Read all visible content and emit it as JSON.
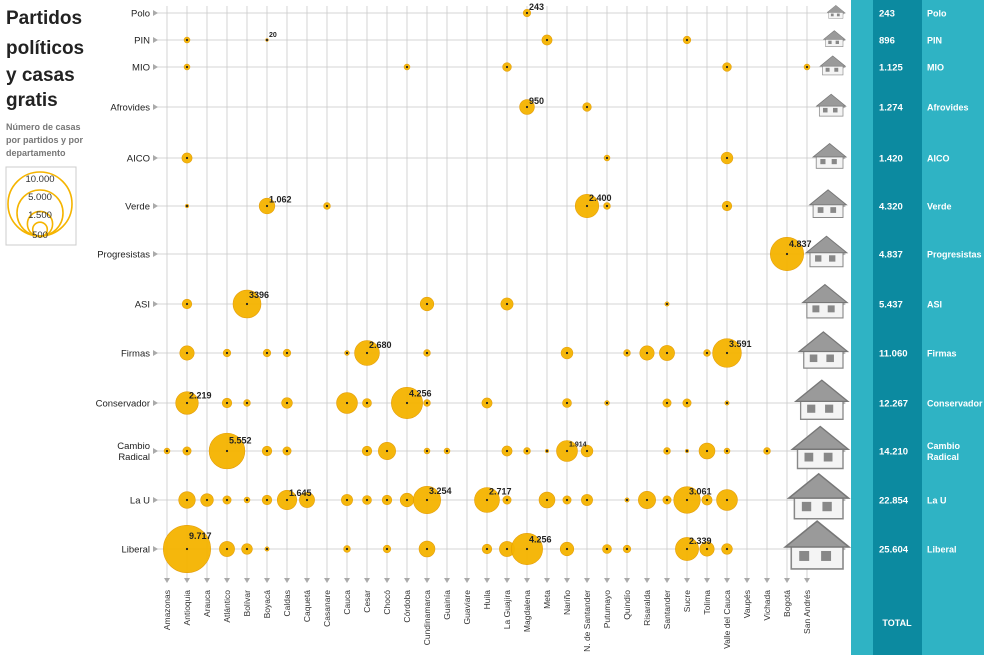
{
  "title_lines": [
    "Partidos",
    "políticos",
    "y casas",
    "gratis"
  ],
  "subtitle_lines": [
    "Número de casas",
    "por partidos y por",
    "departamento"
  ],
  "legend": {
    "values": [
      "10.000",
      "5.000",
      "1.500",
      "500"
    ]
  },
  "total_label": "TOTAL",
  "colors": {
    "bubble": "#f5b400",
    "bubble_stroke": "#e39a00",
    "panel_dark": "#0c8aa0",
    "panel_light": "#2fb3c4",
    "grid": "#c9c9c9",
    "house_wall": "#f4f4f4",
    "house_roof": "#9a9a9a"
  },
  "chart_data": {
    "type": "bubble-matrix",
    "title": "Partidos políticos y casas gratis",
    "subtitle": "Número de casas por partidos y por departamento",
    "departments": [
      "Amazonas",
      "Antioquia",
      "Arauca",
      "Atlántico",
      "Bolívar",
      "Boyacá",
      "Caldas",
      "Caquetá",
      "Casanare",
      "Cauca",
      "Cesar",
      "Chocó",
      "Córdoba",
      "Cundinamarca",
      "Guainía",
      "Guaviare",
      "Huila",
      "La Guajira",
      "Magdalena",
      "Meta",
      "Nariño",
      "N. de Santander",
      "Putumayo",
      "Quindío",
      "Risaralda",
      "Santander",
      "Sucre",
      "Tolima",
      "Valle del Cauca",
      "Vaupés",
      "Vichada",
      "Bogotá",
      "San Andrés"
    ],
    "parties": [
      {
        "name": "Polo",
        "lines": [
          "Polo"
        ],
        "total": "243",
        "total_name_lines": [
          "Polo"
        ],
        "points": [
          {
            "dept": "Magdalena",
            "size": 243,
            "label": "243"
          }
        ]
      },
      {
        "name": "PIN",
        "lines": [
          "PIN"
        ],
        "total": "896",
        "total_name_lines": [
          "PIN"
        ],
        "points": [
          {
            "dept": "Antioquia",
            "size": 150
          },
          {
            "dept": "Boyacá",
            "size": 20,
            "label": "20",
            "small": true
          },
          {
            "dept": "Meta",
            "size": 450
          },
          {
            "dept": "Sucre",
            "size": 250
          }
        ]
      },
      {
        "name": "MIO",
        "lines": [
          "MIO"
        ],
        "total": "1.125",
        "total_name_lines": [
          "MIO"
        ],
        "points": [
          {
            "dept": "Antioquia",
            "size": 150
          },
          {
            "dept": "Córdoba",
            "size": 150
          },
          {
            "dept": "La Guajira",
            "size": 330
          },
          {
            "dept": "Valle del Cauca",
            "size": 330
          },
          {
            "dept": "San Andrés",
            "size": 150
          }
        ]
      },
      {
        "name": "Afrovides",
        "lines": [
          "Afrovides"
        ],
        "total": "1.274",
        "total_name_lines": [
          "Afrovides"
        ],
        "points": [
          {
            "dept": "Magdalena",
            "size": 950,
            "label": "950"
          },
          {
            "dept": "N. de Santander",
            "size": 324
          }
        ]
      },
      {
        "name": "AICO",
        "lines": [
          "AICO"
        ],
        "total": "1.420",
        "total_name_lines": [
          "AICO"
        ],
        "points": [
          {
            "dept": "Antioquia",
            "size": 450
          },
          {
            "dept": "Putumayo",
            "size": 150
          },
          {
            "dept": "Valle del Cauca",
            "size": 600
          }
        ]
      },
      {
        "name": "Verde",
        "lines": [
          "Verde"
        ],
        "total": "4.320",
        "total_name_lines": [
          "Verde"
        ],
        "points": [
          {
            "dept": "Antioquia",
            "size": 50
          },
          {
            "dept": "Boyacá",
            "size": 1062,
            "label": "1.062"
          },
          {
            "dept": "Casanare",
            "size": 200
          },
          {
            "dept": "N. de Santander",
            "size": 2400,
            "label": "2.400"
          },
          {
            "dept": "Putumayo",
            "size": 200
          },
          {
            "dept": "Valle del Cauca",
            "size": 400
          }
        ]
      },
      {
        "name": "Progresistas",
        "lines": [
          "Progresistas"
        ],
        "total": "4.837",
        "total_name_lines": [
          "Progresistas"
        ],
        "points": [
          {
            "dept": "Bogotá",
            "size": 4837,
            "label": "4.837"
          }
        ]
      },
      {
        "name": "ASI",
        "lines": [
          "ASI"
        ],
        "total": "5.437",
        "total_name_lines": [
          "ASI"
        ],
        "points": [
          {
            "dept": "Antioquia",
            "size": 400
          },
          {
            "dept": "Bolívar",
            "size": 3396,
            "label": "3396"
          },
          {
            "dept": "Cundinamarca",
            "size": 800
          },
          {
            "dept": "La Guajira",
            "size": 650
          },
          {
            "dept": "Santander",
            "size": 80
          }
        ]
      },
      {
        "name": "Firmas",
        "lines": [
          "Firmas"
        ],
        "total": "11.060",
        "total_name_lines": [
          "Firmas"
        ],
        "points": [
          {
            "dept": "Antioquia",
            "size": 900
          },
          {
            "dept": "Atlántico",
            "size": 250
          },
          {
            "dept": "Boyacá",
            "size": 250
          },
          {
            "dept": "Caldas",
            "size": 250
          },
          {
            "dept": "Cauca",
            "size": 100
          },
          {
            "dept": "Cesar",
            "size": 2680,
            "label": "2.680"
          },
          {
            "dept": "Cundinamarca",
            "size": 200
          },
          {
            "dept": "Nariño",
            "size": 600
          },
          {
            "dept": "Quindío",
            "size": 200
          },
          {
            "dept": "Risaralda",
            "size": 900
          },
          {
            "dept": "Santander",
            "size": 1000
          },
          {
            "dept": "Tolima",
            "size": 200
          },
          {
            "dept": "Valle del Cauca",
            "size": 3591,
            "label": "3.591"
          }
        ]
      },
      {
        "name": "Conservador",
        "lines": [
          "Conservador"
        ],
        "total": "12.267",
        "total_name_lines": [
          "Conservador"
        ],
        "points": [
          {
            "dept": "Antioquia",
            "size": 2219,
            "label": "2.219"
          },
          {
            "dept": "Atlántico",
            "size": 400
          },
          {
            "dept": "Bolívar",
            "size": 200
          },
          {
            "dept": "Caldas",
            "size": 500
          },
          {
            "dept": "Cauca",
            "size": 1900
          },
          {
            "dept": "Cesar",
            "size": 350
          },
          {
            "dept": "Córdoba",
            "size": 4256,
            "label": "4.256"
          },
          {
            "dept": "Cundinamarca",
            "size": 200
          },
          {
            "dept": "Huila",
            "size": 450
          },
          {
            "dept": "Nariño",
            "size": 350
          },
          {
            "dept": "Putumayo",
            "size": 100
          },
          {
            "dept": "Santander",
            "size": 300
          },
          {
            "dept": "Sucre",
            "size": 300
          },
          {
            "dept": "Valle del Cauca",
            "size": 80
          }
        ]
      },
      {
        "name": "Cambio Radical",
        "lines": [
          "Cambio",
          "Radical"
        ],
        "total": "14.210",
        "total_name_lines": [
          "Cambio",
          "Radical"
        ],
        "points": [
          {
            "dept": "Amazonas",
            "size": 150
          },
          {
            "dept": "Antioquia",
            "size": 300
          },
          {
            "dept": "Atlántico",
            "size": 5552,
            "label": "5.552"
          },
          {
            "dept": "Boyacá",
            "size": 400
          },
          {
            "dept": "Caldas",
            "size": 300
          },
          {
            "dept": "Cesar",
            "size": 400
          },
          {
            "dept": "Chocó",
            "size": 1300
          },
          {
            "dept": "Cundinamarca",
            "size": 150
          },
          {
            "dept": "Guainía",
            "size": 150
          },
          {
            "dept": "La Guajira",
            "size": 450
          },
          {
            "dept": "Magdalena",
            "size": 200
          },
          {
            "dept": "Meta",
            "size": 50
          },
          {
            "dept": "Nariño",
            "size": 1914,
            "label": "1.914",
            "small": true
          },
          {
            "dept": "N. de Santander",
            "size": 600
          },
          {
            "dept": "Santander",
            "size": 200
          },
          {
            "dept": "Sucre",
            "size": 50
          },
          {
            "dept": "Tolima",
            "size": 1100
          },
          {
            "dept": "Valle del Cauca",
            "size": 150
          },
          {
            "dept": "Vichada",
            "size": 200
          }
        ]
      },
      {
        "name": "La U",
        "lines": [
          "La U"
        ],
        "total": "22.854",
        "total_name_lines": [
          "La U"
        ],
        "points": [
          {
            "dept": "Antioquia",
            "size": 1200
          },
          {
            "dept": "Arauca",
            "size": 700
          },
          {
            "dept": "Atlántico",
            "size": 300
          },
          {
            "dept": "Bolívar",
            "size": 150
          },
          {
            "dept": "Boyacá",
            "size": 400
          },
          {
            "dept": "Caldas",
            "size": 1645,
            "label": "1.645"
          },
          {
            "dept": "Caquetá",
            "size": 1000
          },
          {
            "dept": "Cauca",
            "size": 550
          },
          {
            "dept": "Cesar",
            "size": 350
          },
          {
            "dept": "Chocó",
            "size": 400
          },
          {
            "dept": "Córdoba",
            "size": 800
          },
          {
            "dept": "Cundinamarca",
            "size": 3254,
            "label": "3.254"
          },
          {
            "dept": "Huila",
            "size": 2717,
            "label": "2.717"
          },
          {
            "dept": "La Guajira",
            "size": 300
          },
          {
            "dept": "Meta",
            "size": 1100
          },
          {
            "dept": "Nariño",
            "size": 300
          },
          {
            "dept": "N. de Santander",
            "size": 550
          },
          {
            "dept": "Quindío",
            "size": 80
          },
          {
            "dept": "Risaralda",
            "size": 1300
          },
          {
            "dept": "Santander",
            "size": 300
          },
          {
            "dept": "Sucre",
            "size": 3061,
            "label": "3.061"
          },
          {
            "dept": "Tolima",
            "size": 450
          },
          {
            "dept": "Valle del Cauca",
            "size": 1900
          }
        ]
      },
      {
        "name": "Liberal",
        "lines": [
          "Liberal"
        ],
        "total": "25.604",
        "total_name_lines": [
          "Liberal"
        ],
        "points": [
          {
            "dept": "Antioquia",
            "size": 9717,
            "label": "9.717"
          },
          {
            "dept": "Atlántico",
            "size": 1000
          },
          {
            "dept": "Bolívar",
            "size": 500
          },
          {
            "dept": "Boyacá",
            "size": 80
          },
          {
            "dept": "Cauca",
            "size": 200
          },
          {
            "dept": "Chocó",
            "size": 250
          },
          {
            "dept": "Cundinamarca",
            "size": 1100
          },
          {
            "dept": "Huila",
            "size": 400
          },
          {
            "dept": "La Guajira",
            "size": 1000
          },
          {
            "dept": "Magdalena",
            "size": 4256,
            "label": "4.256"
          },
          {
            "dept": "Nariño",
            "size": 800
          },
          {
            "dept": "Putumayo",
            "size": 350
          },
          {
            "dept": "Quindío",
            "size": 250
          },
          {
            "dept": "Sucre",
            "size": 2339,
            "label": "2.339"
          },
          {
            "dept": "Tolima",
            "size": 900
          },
          {
            "dept": "Valle del Cauca",
            "size": 500
          }
        ]
      }
    ]
  }
}
